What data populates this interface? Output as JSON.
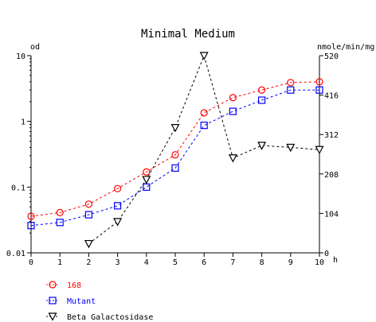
{
  "chart_data": {
    "type": "line",
    "title": "Minimal Medium",
    "x": [
      0,
      1,
      2,
      3,
      4,
      5,
      6,
      7,
      8,
      9,
      10
    ],
    "x_ticks": [
      "0",
      "1",
      "2",
      "3",
      "4",
      "5",
      "6",
      "7",
      "8",
      "9",
      "10"
    ],
    "x_unit": "h",
    "xlim": [
      0,
      10
    ],
    "y_left": {
      "label": "od",
      "scale": "log",
      "range": [
        0.01,
        10
      ],
      "ticks": [
        0.01,
        0.1,
        1,
        10
      ],
      "tick_labels": [
        "0.01",
        "0.1",
        "1",
        "10"
      ]
    },
    "y_right": {
      "label": "nmole/min/mg",
      "scale": "linear",
      "range": [
        0,
        520
      ],
      "ticks": [
        0,
        104,
        208,
        312,
        416,
        520
      ],
      "tick_labels": [
        "0",
        "104",
        "208",
        "312",
        "416",
        "520"
      ]
    },
    "grid": false,
    "legend_position": "bottom-left",
    "series": [
      {
        "name": "168",
        "axis": "left",
        "color": "#ff0000",
        "marker": "circle",
        "line": "dashed",
        "x": [
          0,
          1,
          2,
          3,
          4,
          5,
          6,
          7,
          8,
          9,
          10
        ],
        "values": [
          0.036,
          0.041,
          0.055,
          0.095,
          0.17,
          0.31,
          1.35,
          2.3,
          3.0,
          3.9,
          4.0
        ]
      },
      {
        "name": "Mutant",
        "axis": "left",
        "color": "#0000ff",
        "marker": "square",
        "line": "dashed",
        "x": [
          0,
          1,
          2,
          3,
          4,
          5,
          6,
          7,
          8,
          9,
          10
        ],
        "values": [
          0.026,
          0.029,
          0.038,
          0.052,
          0.1,
          0.195,
          0.87,
          1.42,
          2.1,
          3.0,
          3.0
        ]
      },
      {
        "name": "Beta Galactosidase",
        "axis": "right",
        "color": "#000000",
        "marker": "triangle-down",
        "line": "dashed",
        "x": [
          2,
          3,
          4,
          5,
          6,
          7,
          8,
          9,
          10
        ],
        "values": [
          24,
          82,
          193,
          330,
          520,
          250,
          283,
          278,
          272
        ]
      }
    ]
  }
}
